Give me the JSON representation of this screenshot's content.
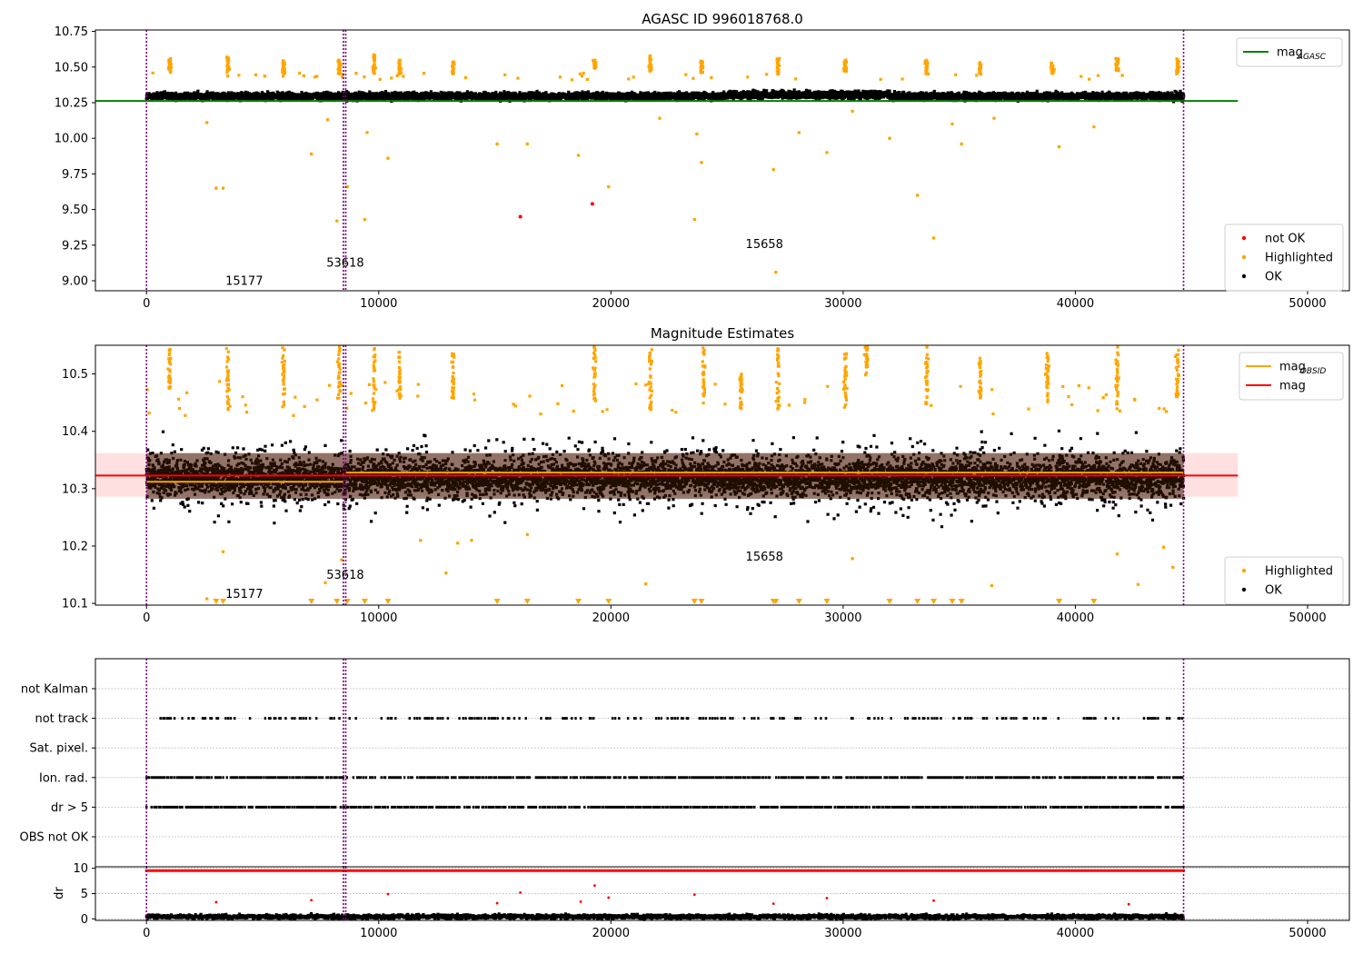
{
  "figure": {
    "titles": {
      "top": "AGASC ID 996018768.0",
      "middle": "Magnitude Estimates"
    },
    "colors": {
      "ok": "#000000",
      "highlighted": "#ffa500",
      "not_ok": "#ff0000",
      "agasc_line": "#008000",
      "obsid_line": "#ffa500",
      "mag_line": "#ff0000",
      "band": "#ffcccc",
      "obs_line": "#800080"
    }
  },
  "chart_data": [
    {
      "id": "agasc_panel",
      "type": "scatter",
      "title": "AGASC ID 996018768.0",
      "xlim": [
        -2200,
        51800
      ],
      "ylim": [
        8.93,
        10.76
      ],
      "xticks": [
        "0",
        "10000",
        "20000",
        "30000",
        "40000",
        "50000"
      ],
      "xtick_values": [
        0,
        10000,
        20000,
        30000,
        40000,
        50000
      ],
      "yticks": [
        "9.00",
        "9.25",
        "9.50",
        "9.75",
        "10.00",
        "10.25",
        "10.50",
        "10.75"
      ],
      "ytick_values": [
        9.0,
        9.25,
        9.5,
        9.75,
        10.0,
        10.25,
        10.5,
        10.75
      ],
      "hline": {
        "name": "mag_AGASC",
        "y": 10.262,
        "x": [
          -2200,
          47000
        ]
      },
      "obs_boundaries": [
        0,
        8480,
        8580,
        44660
      ],
      "annotations": [
        {
          "text": "15177",
          "x": 3400,
          "y": 8.97
        },
        {
          "text": "53618",
          "x": 7750,
          "y": 9.1
        },
        {
          "text": "15658",
          "x": 25800,
          "y": 9.23
        }
      ],
      "ok_band": {
        "x": [
          0,
          44660
        ],
        "center": 10.305,
        "spread": 0.045
      },
      "highlight_clusters": [
        {
          "x": 1000,
          "y": [
            10.47,
            10.58
          ]
        },
        {
          "x": 3500,
          "y": [
            10.47,
            10.58
          ]
        },
        {
          "x": 5900,
          "y": [
            10.46,
            10.56
          ]
        },
        {
          "x": 8300,
          "y": [
            10.46,
            10.56
          ]
        },
        {
          "x": 9800,
          "y": [
            10.46,
            10.6
          ]
        },
        {
          "x": 10900,
          "y": [
            10.46,
            10.56
          ]
        },
        {
          "x": 13200,
          "y": [
            10.46,
            10.55
          ]
        },
        {
          "x": 19300,
          "y": [
            10.5,
            10.56
          ]
        },
        {
          "x": 21700,
          "y": [
            10.48,
            10.59
          ]
        },
        {
          "x": 23900,
          "y": [
            10.47,
            10.56
          ]
        },
        {
          "x": 27200,
          "y": [
            10.46,
            10.57
          ]
        },
        {
          "x": 30100,
          "y": [
            10.48,
            10.56
          ]
        },
        {
          "x": 33600,
          "y": [
            10.46,
            10.56
          ]
        },
        {
          "x": 35900,
          "y": [
            10.46,
            10.55
          ]
        },
        {
          "x": 39000,
          "y": [
            10.46,
            10.54
          ]
        },
        {
          "x": 41800,
          "y": [
            10.48,
            10.57
          ]
        },
        {
          "x": 44400,
          "y": [
            10.46,
            10.57
          ]
        }
      ],
      "highlighted_points": [
        [
          2600,
          10.11
        ],
        [
          3000,
          9.65
        ],
        [
          3300,
          9.65
        ],
        [
          7100,
          9.89
        ],
        [
          7800,
          10.13
        ],
        [
          8200,
          9.42
        ],
        [
          8650,
          9.66
        ],
        [
          9500,
          10.04
        ],
        [
          9400,
          9.43
        ],
        [
          10400,
          9.86
        ],
        [
          15100,
          9.96
        ],
        [
          16400,
          9.96
        ],
        [
          18600,
          9.88
        ],
        [
          19900,
          9.66
        ],
        [
          22100,
          10.14
        ],
        [
          23700,
          10.03
        ],
        [
          23600,
          9.43
        ],
        [
          23900,
          9.83
        ],
        [
          27000,
          9.78
        ],
        [
          27100,
          9.06
        ],
        [
          28100,
          10.04
        ],
        [
          29300,
          9.9
        ],
        [
          30400,
          10.19
        ],
        [
          32000,
          10.0
        ],
        [
          33200,
          9.6
        ],
        [
          33900,
          9.3
        ],
        [
          34700,
          10.1
        ],
        [
          35100,
          9.96
        ],
        [
          36500,
          10.14
        ],
        [
          39300,
          9.94
        ],
        [
          40800,
          10.08
        ]
      ],
      "not_ok_points": [
        [
          16100,
          9.45
        ],
        [
          19200,
          9.54
        ]
      ],
      "legends": [
        {
          "position": "upper-right",
          "entries": [
            {
              "label": "mag",
              "sub": "AGASC",
              "kind": "line",
              "color": "#008000"
            }
          ]
        },
        {
          "position": "lower-right",
          "entries": [
            {
              "label": "not OK",
              "kind": "dot",
              "color": "#ff0000"
            },
            {
              "label": "Highlighted",
              "kind": "dot",
              "color": "#ffa500"
            },
            {
              "label": "OK",
              "kind": "dot",
              "color": "#000000"
            }
          ]
        }
      ]
    },
    {
      "id": "estimates_panel",
      "type": "scatter",
      "title": "Magnitude Estimates",
      "xlim": [
        -2200,
        51800
      ],
      "ylim": [
        10.097,
        10.55
      ],
      "xticks": [
        "0",
        "10000",
        "20000",
        "30000",
        "40000",
        "50000"
      ],
      "xtick_values": [
        0,
        10000,
        20000,
        30000,
        40000,
        50000
      ],
      "yticks": [
        "10.1",
        "10.2",
        "10.3",
        "10.4",
        "10.5"
      ],
      "ytick_values": [
        10.1,
        10.2,
        10.3,
        10.4,
        10.5
      ],
      "mag_line": {
        "name": "mag",
        "y": 10.323,
        "x": [
          -2200,
          47000
        ],
        "band": [
          10.286,
          10.362
        ]
      },
      "obsid_segments": [
        {
          "x": [
            0,
            8480
          ],
          "y": 10.312
        },
        {
          "x": [
            8580,
            44660
          ],
          "y": 10.328
        }
      ],
      "obs_boundaries": [
        0,
        8480,
        8580,
        44660
      ],
      "annotations": [
        {
          "text": "15177",
          "x": 3400,
          "y": 10.11
        },
        {
          "text": "53618",
          "x": 7750,
          "y": 10.143
        },
        {
          "text": "15658",
          "x": 25800,
          "y": 10.175
        }
      ],
      "ok_band": {
        "x": [
          0,
          44660
        ],
        "center": 10.322,
        "inner_spread": 0.04,
        "outer_spread": 0.1
      },
      "highlight_clusters": [
        {
          "x": 1000,
          "y": [
            10.47,
            10.55
          ]
        },
        {
          "x": 3500,
          "y": [
            10.44,
            10.55
          ]
        },
        {
          "x": 5900,
          "y": [
            10.44,
            10.55
          ]
        },
        {
          "x": 8300,
          "y": [
            10.46,
            10.55
          ]
        },
        {
          "x": 9800,
          "y": [
            10.44,
            10.55
          ]
        },
        {
          "x": 10900,
          "y": [
            10.46,
            10.55
          ]
        },
        {
          "x": 13200,
          "y": [
            10.46,
            10.54
          ]
        },
        {
          "x": 19300,
          "y": [
            10.45,
            10.55
          ]
        },
        {
          "x": 21700,
          "y": [
            10.44,
            10.55
          ]
        },
        {
          "x": 24000,
          "y": [
            10.45,
            10.55
          ]
        },
        {
          "x": 25600,
          "y": [
            10.44,
            10.51
          ]
        },
        {
          "x": 27200,
          "y": [
            10.44,
            10.55
          ]
        },
        {
          "x": 30100,
          "y": [
            10.44,
            10.55
          ]
        },
        {
          "x": 31000,
          "y": [
            10.49,
            10.55
          ]
        },
        {
          "x": 33600,
          "y": [
            10.45,
            10.55
          ]
        },
        {
          "x": 35900,
          "y": [
            10.46,
            10.53
          ]
        },
        {
          "x": 38800,
          "y": [
            10.45,
            10.54
          ]
        },
        {
          "x": 41800,
          "y": [
            10.44,
            10.55
          ]
        },
        {
          "x": 44400,
          "y": [
            10.46,
            10.55
          ]
        }
      ],
      "highlighted_points": [
        [
          2600,
          10.108
        ],
        [
          3300,
          10.19
        ],
        [
          7700,
          10.136
        ],
        [
          8400,
          10.176
        ],
        [
          11800,
          10.21
        ],
        [
          12900,
          10.153
        ],
        [
          13400,
          10.205
        ],
        [
          14000,
          10.21
        ],
        [
          16400,
          10.22
        ],
        [
          21500,
          10.134
        ],
        [
          30400,
          10.178
        ],
        [
          36400,
          10.131
        ],
        [
          41800,
          10.186
        ],
        [
          42700,
          10.133
        ],
        [
          43800,
          10.198
        ],
        [
          44200,
          10.163
        ]
      ],
      "offscale_markers_x": [
        3000,
        3300,
        7100,
        8200,
        8650,
        9400,
        10400,
        15100,
        16400,
        18600,
        19900,
        23600,
        23900,
        27000,
        27100,
        28100,
        29300,
        32000,
        33200,
        33900,
        34700,
        35100,
        39300,
        40800
      ],
      "legends": [
        {
          "position": "upper-right",
          "entries": [
            {
              "label": "mag",
              "sub": "OBSID",
              "kind": "line",
              "color": "#ffa500"
            },
            {
              "label": "mag",
              "kind": "line",
              "color": "#ff0000"
            }
          ]
        },
        {
          "position": "lower-right",
          "entries": [
            {
              "label": "Highlighted",
              "kind": "dot",
              "color": "#ffa500"
            },
            {
              "label": "OK",
              "kind": "dot",
              "color": "#000000"
            }
          ]
        }
      ]
    },
    {
      "id": "flags_panel",
      "type": "scatter",
      "xlim": [
        -2200,
        51800
      ],
      "categories": [
        "not Kalman",
        "not track",
        "Sat. pixel.",
        "Ion. rad.",
        "dr > 5",
        "OBS not OK"
      ],
      "rows": [
        {
          "label": "not Kalman",
          "x": [
            0,
            0
          ],
          "density": 0
        },
        {
          "label": "not track",
          "x": [
            0,
            44660
          ],
          "density": 0.28
        },
        {
          "label": "Sat. pixel.",
          "x": [
            0,
            0
          ],
          "density": 0
        },
        {
          "label": "Ion. rad.",
          "x": [
            0,
            44660
          ],
          "density": 0.75
        },
        {
          "label": "dr > 5",
          "x": [
            0,
            44660
          ],
          "density": 0.75
        },
        {
          "label": "OBS not OK",
          "x": [
            0,
            0
          ],
          "density": 0
        }
      ],
      "obs_boundaries": [
        0,
        8480,
        8580,
        44660
      ]
    },
    {
      "id": "dr_panel",
      "type": "scatter",
      "xlim": [
        -2200,
        51800
      ],
      "ylim": [
        -0.3,
        10.3
      ],
      "ylabel": "dr",
      "xticks": [
        "0",
        "10000",
        "20000",
        "30000",
        "40000",
        "50000"
      ],
      "xtick_values": [
        0,
        10000,
        20000,
        30000,
        40000,
        50000
      ],
      "yticks": [
        "0",
        "5",
        "10"
      ],
      "ytick_values": [
        0,
        5,
        10
      ],
      "ok_band": {
        "x": [
          0,
          44660
        ],
        "center": 0.7,
        "spread": 0.7
      },
      "clipped_row": {
        "y": 9.8,
        "x": [
          0,
          44660
        ],
        "color": "#ff0000"
      },
      "red_points": [
        [
          3000,
          3.3
        ],
        [
          7100,
          3.7
        ],
        [
          10400,
          4.9
        ],
        [
          15100,
          3.1
        ],
        [
          16100,
          5.2
        ],
        [
          18700,
          3.4
        ],
        [
          19300,
          6.6
        ],
        [
          19900,
          4.2
        ],
        [
          23600,
          4.8
        ],
        [
          27000,
          3.0
        ],
        [
          29300,
          4.1
        ],
        [
          33900,
          3.6
        ],
        [
          42300,
          2.9
        ]
      ],
      "obs_boundaries": [
        0,
        8480,
        8580,
        44660
      ]
    }
  ]
}
